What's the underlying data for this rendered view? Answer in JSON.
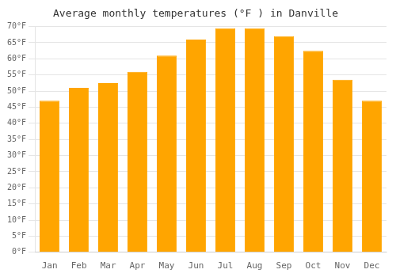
{
  "chart_data": {
    "type": "bar",
    "title": "Average monthly temperatures (°F ) in Danville",
    "categories": [
      "Jan",
      "Feb",
      "Mar",
      "Apr",
      "May",
      "Jun",
      "Jul",
      "Aug",
      "Sep",
      "Oct",
      "Nov",
      "Dec"
    ],
    "values": [
      47,
      51,
      52.5,
      56,
      61,
      66,
      69.5,
      69.5,
      67,
      62.5,
      53.5,
      47
    ],
    "color": "#FFA500",
    "ylim": [
      0,
      70
    ],
    "yticks": [
      {
        "value": 0,
        "label": "0°F"
      },
      {
        "value": 5,
        "label": "5°F"
      },
      {
        "value": 10,
        "label": "10°F"
      },
      {
        "value": 15,
        "label": "15°F"
      },
      {
        "value": 20,
        "label": "20°F"
      },
      {
        "value": 25,
        "label": "25°F"
      },
      {
        "value": 30,
        "label": "30°F"
      },
      {
        "value": 35,
        "label": "35°F"
      },
      {
        "value": 40,
        "label": "40°F"
      },
      {
        "value": 45,
        "label": "45°F"
      },
      {
        "value": 50,
        "label": "50°F"
      },
      {
        "value": 55,
        "label": "55°F"
      },
      {
        "value": 60,
        "label": "60°F"
      },
      {
        "value": 65,
        "label": "65°F"
      },
      {
        "value": 70,
        "label": "70°F"
      }
    ],
    "grid": true
  }
}
